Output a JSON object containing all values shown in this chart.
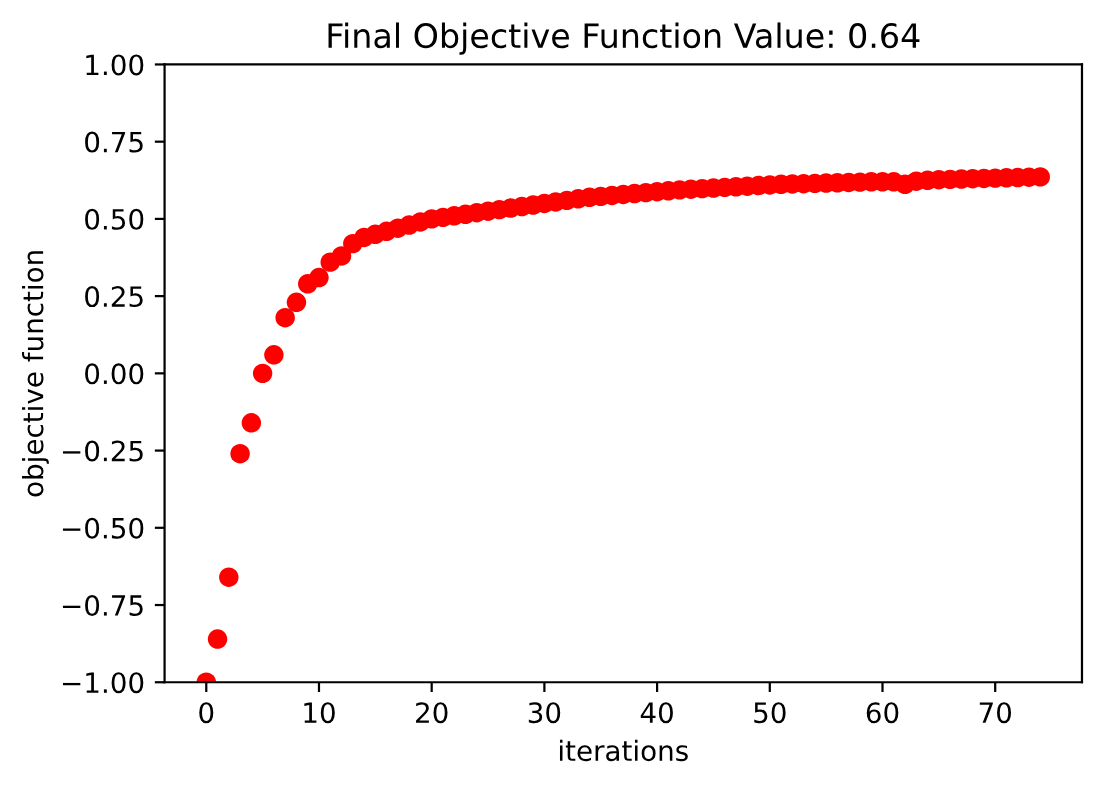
{
  "chart_data": {
    "type": "scatter",
    "title": "Final Objective Function Value: 0.64",
    "xlabel": "iterations",
    "ylabel": "objective function",
    "x": [
      0,
      1,
      2,
      3,
      4,
      5,
      6,
      7,
      8,
      9,
      10,
      11,
      12,
      13,
      14,
      15,
      16,
      17,
      18,
      19,
      20,
      21,
      22,
      23,
      24,
      25,
      26,
      27,
      28,
      29,
      30,
      31,
      32,
      33,
      34,
      35,
      36,
      37,
      38,
      39,
      40,
      41,
      42,
      43,
      44,
      45,
      46,
      47,
      48,
      49,
      50,
      51,
      52,
      53,
      54,
      55,
      56,
      57,
      58,
      59,
      60,
      61,
      62,
      63,
      64,
      65,
      66,
      67,
      68,
      69,
      70,
      71,
      72,
      73,
      74
    ],
    "series": [
      {
        "color": "#ff0000",
        "values": [
          -1.0,
          -0.86,
          -0.66,
          -0.26,
          -0.16,
          0.0,
          0.06,
          0.18,
          0.23,
          0.29,
          0.31,
          0.36,
          0.38,
          0.42,
          0.44,
          0.45,
          0.46,
          0.47,
          0.48,
          0.49,
          0.5,
          0.505,
          0.51,
          0.515,
          0.52,
          0.525,
          0.53,
          0.535,
          0.54,
          0.545,
          0.55,
          0.555,
          0.56,
          0.565,
          0.57,
          0.573,
          0.576,
          0.579,
          0.582,
          0.585,
          0.588,
          0.591,
          0.594,
          0.596,
          0.598,
          0.6,
          0.602,
          0.604,
          0.606,
          0.608,
          0.61,
          0.612,
          0.613,
          0.614,
          0.615,
          0.616,
          0.617,
          0.618,
          0.619,
          0.62,
          0.62,
          0.62,
          0.612,
          0.622,
          0.625,
          0.627,
          0.628,
          0.629,
          0.63,
          0.631,
          0.632,
          0.633,
          0.634,
          0.635,
          0.636
        ]
      }
    ],
    "marker": "circle",
    "xlim": [
      -3.7,
      77.7
    ],
    "ylim": [
      -1.0,
      1.0
    ],
    "xticks": [
      0,
      10,
      20,
      30,
      40,
      50,
      60,
      70
    ],
    "yticks": [
      {
        "value": -1.0,
        "label": "−1.00"
      },
      {
        "value": -0.75,
        "label": "−0.75"
      },
      {
        "value": -0.5,
        "label": "−0.50"
      },
      {
        "value": -0.25,
        "label": "−0.25"
      },
      {
        "value": 0.0,
        "label": "0.00"
      },
      {
        "value": 0.25,
        "label": "0.25"
      },
      {
        "value": 0.5,
        "label": "0.50"
      },
      {
        "value": 0.75,
        "label": "0.75"
      },
      {
        "value": 1.0,
        "label": "1.00"
      }
    ]
  }
}
